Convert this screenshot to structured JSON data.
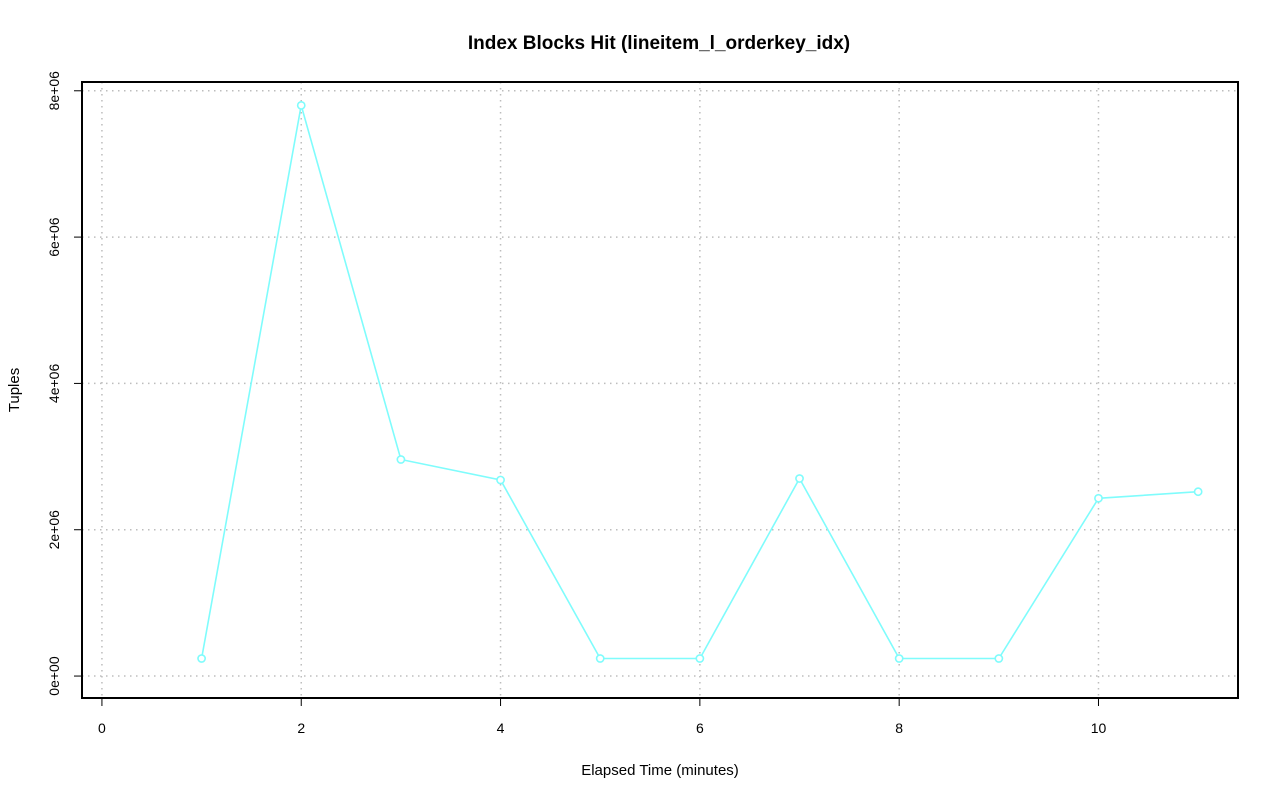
{
  "colors": {
    "series": "#7ffcfc"
  },
  "chart_data": {
    "type": "line",
    "title": "Index Blocks Hit (lineitem_l_orderkey_idx)",
    "xlabel": "Elapsed Time (minutes)",
    "ylabel": "Tuples",
    "xlim": [
      -0.2,
      11.4
    ],
    "ylim": [
      -300000,
      8120000
    ],
    "x_ticks": [
      0,
      2,
      4,
      6,
      8,
      10
    ],
    "x_tick_labels": [
      "0",
      "2",
      "4",
      "6",
      "8",
      "10"
    ],
    "y_ticks": [
      0,
      2000000,
      4000000,
      6000000,
      8000000
    ],
    "y_tick_labels": [
      "0e+00",
      "2e+06",
      "4e+06",
      "6e+06",
      "8e+06"
    ],
    "grid": true,
    "series": [
      {
        "x": [
          1,
          2,
          3,
          4,
          5,
          6,
          7,
          8,
          9,
          10,
          11
        ],
        "y": [
          240000,
          7800000,
          2960000,
          2680000,
          240000,
          240000,
          2700000,
          240000,
          240000,
          2430000,
          2520000
        ]
      }
    ]
  }
}
